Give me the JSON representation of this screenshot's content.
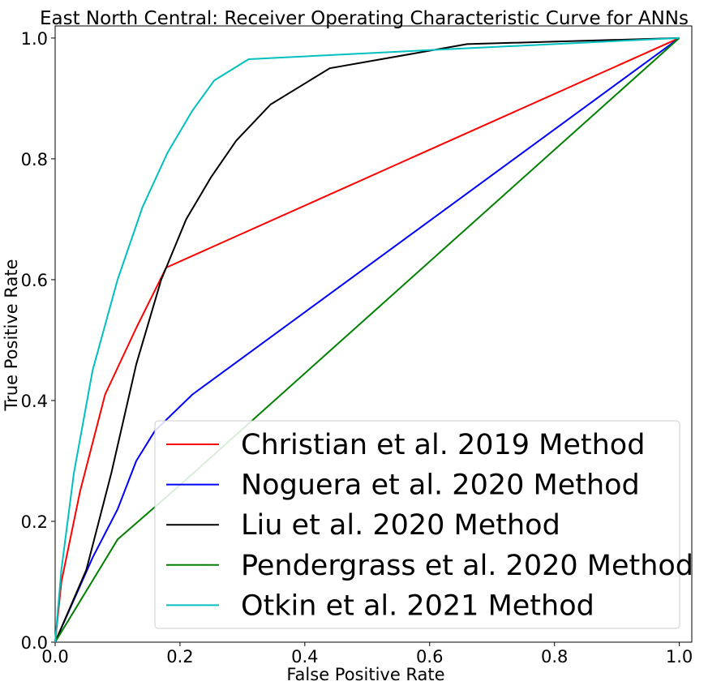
{
  "chart_data": {
    "type": "line",
    "title": "East North Central: Receiver Operating Characteristic Curve for ANNs",
    "xlabel": "False Positive Rate",
    "ylabel": "True Positive Rate",
    "xlim": [
      0.0,
      1.02
    ],
    "ylim": [
      0.0,
      1.02
    ],
    "xticks": [
      "0.0",
      "0.2",
      "0.4",
      "0.6",
      "0.8",
      "1.0"
    ],
    "yticks": [
      "0.0",
      "0.2",
      "0.4",
      "0.6",
      "0.8",
      "1.0"
    ],
    "grid": false,
    "legend_position": "lower-right",
    "series": [
      {
        "name": "Christian et al. 2019 Method",
        "color": "#ff0000",
        "x": [
          0.0,
          0.01,
          0.04,
          0.08,
          0.13,
          0.178,
          1.0
        ],
        "y": [
          0.0,
          0.1,
          0.25,
          0.41,
          0.52,
          0.62,
          1.0
        ]
      },
      {
        "name": "Noguera et al. 2020 Method",
        "color": "#0000ff",
        "x": [
          0.0,
          0.03,
          0.06,
          0.1,
          0.13,
          0.16,
          0.22,
          1.0
        ],
        "y": [
          0.0,
          0.07,
          0.14,
          0.22,
          0.3,
          0.35,
          0.41,
          1.0
        ]
      },
      {
        "name": "Liu et al. 2020 Method",
        "color": "#000000",
        "x": [
          0.0,
          0.05,
          0.09,
          0.13,
          0.17,
          0.21,
          0.25,
          0.29,
          0.345,
          0.44,
          0.66,
          1.0
        ],
        "y": [
          0.0,
          0.12,
          0.28,
          0.46,
          0.6,
          0.7,
          0.77,
          0.83,
          0.89,
          0.95,
          0.99,
          1.0
        ]
      },
      {
        "name": "Pendergrass et al. 2020 Method",
        "color": "#008000",
        "x": [
          0.0,
          0.1,
          0.2,
          1.0
        ],
        "y": [
          0.0,
          0.17,
          0.26,
          1.0
        ]
      },
      {
        "name": "Otkin et al. 2021 Method",
        "color": "#00bfbf",
        "x": [
          0.0,
          0.01,
          0.03,
          0.06,
          0.1,
          0.14,
          0.18,
          0.22,
          0.255,
          0.31,
          0.6,
          1.0
        ],
        "y": [
          0.0,
          0.12,
          0.28,
          0.45,
          0.6,
          0.72,
          0.81,
          0.88,
          0.93,
          0.965,
          0.98,
          1.0
        ]
      }
    ]
  }
}
